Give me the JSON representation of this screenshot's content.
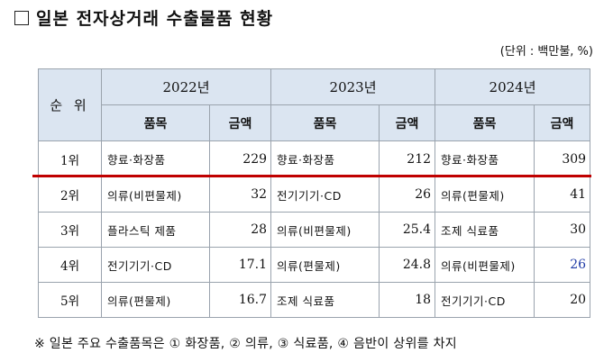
{
  "title": "일본 전자상거래 수출물품 현황",
  "unit": "(단위 : 백만불, %)",
  "header": {
    "rank": "순 위",
    "years": [
      "2022년",
      "2023년",
      "2024년"
    ],
    "item_label": "품목",
    "amount_label": "금액"
  },
  "rows": [
    {
      "rank": "1위",
      "c": [
        {
          "item": "향료·화장품",
          "amt": "229"
        },
        {
          "item": "향료·화장품",
          "amt": "212"
        },
        {
          "item": "향료·화장품",
          "amt": "309"
        }
      ]
    },
    {
      "rank": "2위",
      "c": [
        {
          "item": "의류(비편물제)",
          "amt": "32"
        },
        {
          "item": "전기기기·CD",
          "amt": "26"
        },
        {
          "item": "의류(편물제)",
          "amt": "41"
        }
      ]
    },
    {
      "rank": "3위",
      "c": [
        {
          "item": "플라스틱 제품",
          "amt": "28"
        },
        {
          "item": "의류(비편물제)",
          "amt": "25.4"
        },
        {
          "item": "조제 식료품",
          "amt": "30"
        }
      ]
    },
    {
      "rank": "4위",
      "c": [
        {
          "item": "전기기기·CD",
          "amt": "17.1"
        },
        {
          "item": "의류(편물제)",
          "amt": "24.8"
        },
        {
          "item": "의류(비편물제)",
          "amt": "26"
        }
      ]
    },
    {
      "rank": "5위",
      "c": [
        {
          "item": "의류(편물제)",
          "amt": "16.7"
        },
        {
          "item": "조제 식료품",
          "amt": "18"
        },
        {
          "item": "전기기기·CD",
          "amt": "20"
        }
      ]
    }
  ],
  "note": "※ 일본 주요 수출품목은 ① 화장품, ② 의류, ③ 식료품, ④ 음반이 상위를 차지",
  "colors": {
    "header_bg": "#dbe5f1",
    "highlight_line": "#c00000",
    "emphasis_text": "#1f3aa6"
  }
}
